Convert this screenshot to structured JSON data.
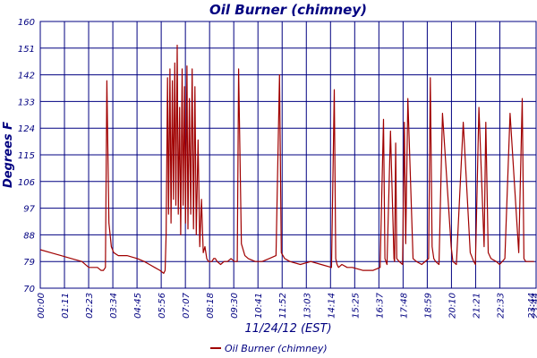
{
  "chart_data": {
    "type": "line",
    "title": "Oil Burner (chimney)",
    "xlabel": "11/24/12 (EST)",
    "ylabel": "Degrees F",
    "ylim": [
      70,
      160
    ],
    "y_ticks": [
      "70",
      "79",
      "88",
      "97",
      "106",
      "115",
      "124",
      "133",
      "142",
      "151",
      "160"
    ],
    "x_ticks": [
      "00:00",
      "01:11",
      "02:23",
      "03:34",
      "04:45",
      "05:56",
      "07:07",
      "08:18",
      "09:30",
      "10:41",
      "11:52",
      "13:03",
      "14:14",
      "15:25",
      "16:37",
      "17:48",
      "18:59",
      "20:10",
      "21:21",
      "22:33",
      "23:44",
      "23:44"
    ],
    "grid": true,
    "legend": "bottom-center",
    "colors": {
      "series": "#a00000",
      "text": "#000080",
      "grid": "#000080"
    },
    "x": [
      "00:00",
      "00:30",
      "01:00",
      "01:30",
      "02:00",
      "02:20",
      "02:30",
      "02:45",
      "02:55",
      "03:02",
      "03:08",
      "03:12",
      "03:18",
      "03:25",
      "03:32",
      "03:45",
      "04:10",
      "04:40",
      "05:00",
      "05:15",
      "05:30",
      "05:45",
      "05:56",
      "06:00",
      "06:03",
      "06:07",
      "06:10",
      "06:14",
      "06:17",
      "06:21",
      "06:24",
      "06:28",
      "06:31",
      "06:35",
      "06:38",
      "06:42",
      "06:45",
      "06:49",
      "06:52",
      "06:56",
      "06:59",
      "07:03",
      "07:06",
      "07:10",
      "07:14",
      "07:18",
      "07:22",
      "07:26",
      "07:30",
      "07:35",
      "07:40",
      "07:45",
      "07:50",
      "07:55",
      "08:00",
      "08:05",
      "08:10",
      "08:15",
      "08:20",
      "08:25",
      "08:30",
      "08:40",
      "08:50",
      "09:00",
      "09:10",
      "09:20",
      "09:28",
      "09:32",
      "09:40",
      "09:50",
      "10:00",
      "10:20",
      "10:40",
      "11:00",
      "11:20",
      "11:30",
      "11:35",
      "11:45",
      "12:00",
      "12:30",
      "13:00",
      "13:30",
      "14:00",
      "14:08",
      "14:12",
      "14:16",
      "14:20",
      "14:30",
      "14:45",
      "15:00",
      "15:30",
      "16:00",
      "16:20",
      "16:30",
      "16:34",
      "16:40",
      "16:50",
      "17:00",
      "17:02",
      "17:05",
      "17:08",
      "17:15",
      "17:25",
      "17:30",
      "17:34",
      "17:40",
      "17:55",
      "18:05",
      "18:20",
      "18:40",
      "18:45",
      "18:50",
      "18:55",
      "19:00",
      "19:10",
      "19:20",
      "19:45",
      "19:50",
      "20:00",
      "20:20",
      "20:40",
      "20:50",
      "20:55",
      "21:05",
      "21:20",
      "21:25",
      "21:32",
      "21:40",
      "21:55",
      "22:05",
      "22:20",
      "22:35",
      "23:00",
      "23:10",
      "23:15",
      "23:20",
      "23:30",
      "23:44"
    ],
    "series": [
      {
        "name": "Oil Burner (chimney)",
        "values": [
          83,
          82,
          81,
          80,
          79,
          77,
          77,
          77,
          76,
          76,
          77,
          140,
          92,
          84,
          82,
          81,
          81,
          80,
          79,
          78,
          77,
          76,
          75,
          76,
          88,
          141,
          95,
          144,
          92,
          140,
          100,
          146,
          98,
          152,
          95,
          131,
          88,
          144,
          98,
          138,
          92,
          145,
          90,
          134,
          95,
          144,
          90,
          138,
          88,
          120,
          84,
          100,
          82,
          84,
          80,
          79,
          79,
          79,
          80,
          80,
          79,
          78,
          79,
          79,
          80,
          79,
          79,
          144,
          85,
          81,
          80,
          79,
          79,
          80,
          81,
          142,
          82,
          80,
          79,
          78,
          79,
          78,
          77,
          137,
          80,
          78,
          77,
          78,
          77,
          77,
          76,
          76,
          77,
          127,
          80,
          78,
          123,
          80,
          79,
          119,
          80,
          79,
          78,
          126,
          85,
          134,
          80,
          79,
          78,
          80,
          141,
          84,
          80,
          79,
          78,
          129,
          84,
          79,
          78,
          126,
          82,
          79,
          78,
          131,
          84,
          126,
          82,
          80,
          79,
          78,
          80,
          129,
          82,
          134,
          80,
          79,
          79,
          79
        ]
      }
    ]
  }
}
